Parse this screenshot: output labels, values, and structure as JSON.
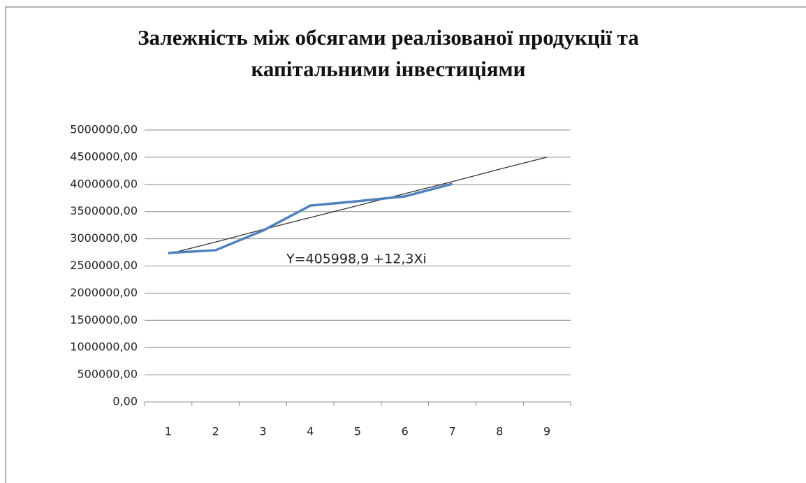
{
  "chart_data": {
    "type": "line",
    "title": [
      "Залежність між обсягами реалізованої продукції та",
      "капітальними інвестиціями"
    ],
    "annotation": "Y=405998,9 +12,3Xi",
    "categories": [
      "1",
      "2",
      "3",
      "4",
      "5",
      "6",
      "7",
      "8",
      "9"
    ],
    "series": [
      {
        "color": "#4f81bd",
        "values": [
          2740000,
          2790000,
          3150000,
          3610000,
          3690000,
          3780000,
          4010000,
          null,
          null
        ]
      },
      {
        "color": "#333333",
        "values": [
          2720000,
          2940000,
          3170000,
          3390000,
          3610000,
          3830000,
          4050000,
          4280000,
          4500000
        ]
      }
    ],
    "ylim": [
      0,
      5000000
    ],
    "yticks": [
      {
        "value": 0,
        "label": "0,00"
      },
      {
        "value": 500000,
        "label": "500000,00"
      },
      {
        "value": 1000000,
        "label": "1000000,00"
      },
      {
        "value": 1500000,
        "label": "1500000,00"
      },
      {
        "value": 2000000,
        "label": "2000000,00"
      },
      {
        "value": 2500000,
        "label": "2500000,00"
      },
      {
        "value": 3000000,
        "label": "3000000,00"
      },
      {
        "value": 3500000,
        "label": "3500000,00"
      },
      {
        "value": 4000000,
        "label": "4000000,00"
      },
      {
        "value": 4500000,
        "label": "4500000,00"
      },
      {
        "value": 5000000,
        "label": "5000000,00"
      }
    ],
    "grid": true
  }
}
